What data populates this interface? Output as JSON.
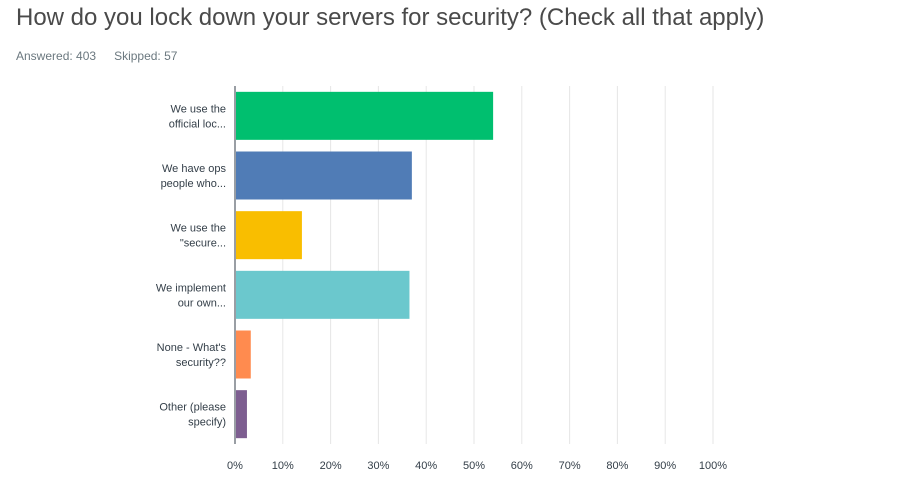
{
  "question": {
    "title": "How do you lock down your servers for security? (Check all that apply)",
    "answered_label": "Answered: 403",
    "skipped_label": "Skipped: 57"
  },
  "chart_data": {
    "type": "bar",
    "orientation": "horizontal",
    "categories": [
      [
        "We use the",
        "official loc..."
      ],
      [
        "We have ops",
        "people who..."
      ],
      [
        "We use the",
        "\"secure..."
      ],
      [
        "We implement",
        "our own..."
      ],
      [
        "None - What's",
        "security??"
      ],
      [
        "Other (please",
        "specify)"
      ]
    ],
    "values": [
      54,
      37,
      14,
      36.5,
      3.3,
      2.5
    ],
    "colors": [
      "#00bf6f",
      "#507cb6",
      "#f9be00",
      "#6bc8cd",
      "#ff8b4f",
      "#7d5e90"
    ],
    "xlim": [
      0,
      100
    ],
    "xticks": [
      "0%",
      "10%",
      "20%",
      "30%",
      "40%",
      "50%",
      "60%",
      "70%",
      "80%",
      "90%",
      "100%"
    ],
    "grid": true,
    "gridColor": "#e6e6e6",
    "axisColor": "#333e48"
  }
}
